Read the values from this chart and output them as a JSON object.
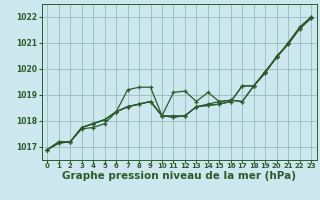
{
  "bg_color": "#cce8ee",
  "grid_color": "#99bbbb",
  "line_color": "#2d5a2d",
  "xlabel": "Graphe pression niveau de la mer (hPa)",
  "xlabel_fontsize": 7.5,
  "xlim": [
    -0.5,
    23.5
  ],
  "ylim": [
    1016.5,
    1022.5
  ],
  "yticks": [
    1017,
    1018,
    1019,
    1020,
    1021,
    1022
  ],
  "xticks": [
    0,
    1,
    2,
    3,
    4,
    5,
    6,
    7,
    8,
    9,
    10,
    11,
    12,
    13,
    14,
    15,
    16,
    17,
    18,
    19,
    20,
    21,
    22,
    23
  ],
  "series": [
    [
      1016.9,
      1017.2,
      1017.2,
      1017.7,
      1017.75,
      1017.9,
      1018.35,
      1019.2,
      1019.3,
      1019.3,
      1018.2,
      1019.1,
      1019.15,
      1018.75,
      1019.1,
      1018.75,
      1018.8,
      1018.75,
      1019.35,
      1019.9,
      1020.45,
      1021.0,
      1021.6,
      1022.0
    ],
    [
      1016.9,
      1017.2,
      1017.2,
      1017.75,
      1017.9,
      1018.05,
      1018.35,
      1018.55,
      1018.65,
      1018.75,
      1018.2,
      1018.2,
      1018.2,
      1018.55,
      1018.65,
      1018.75,
      1018.8,
      1018.75,
      1019.35,
      1019.9,
      1020.45,
      1021.0,
      1021.6,
      1022.0
    ],
    [
      1016.9,
      1017.15,
      1017.2,
      1017.75,
      1017.9,
      1018.05,
      1018.35,
      1018.55,
      1018.65,
      1018.75,
      1018.2,
      1018.15,
      1018.2,
      1018.55,
      1018.6,
      1018.65,
      1018.75,
      1019.35,
      1019.35,
      1019.85,
      1020.5,
      1020.95,
      1021.55,
      1021.95
    ],
    [
      1016.9,
      1017.15,
      1017.2,
      1017.75,
      1017.9,
      1018.05,
      1018.35,
      1018.55,
      1018.65,
      1018.75,
      1018.2,
      1018.15,
      1018.2,
      1018.55,
      1018.6,
      1018.65,
      1018.75,
      1019.35,
      1019.35,
      1019.85,
      1020.45,
      1020.95,
      1021.55,
      1021.95
    ]
  ]
}
